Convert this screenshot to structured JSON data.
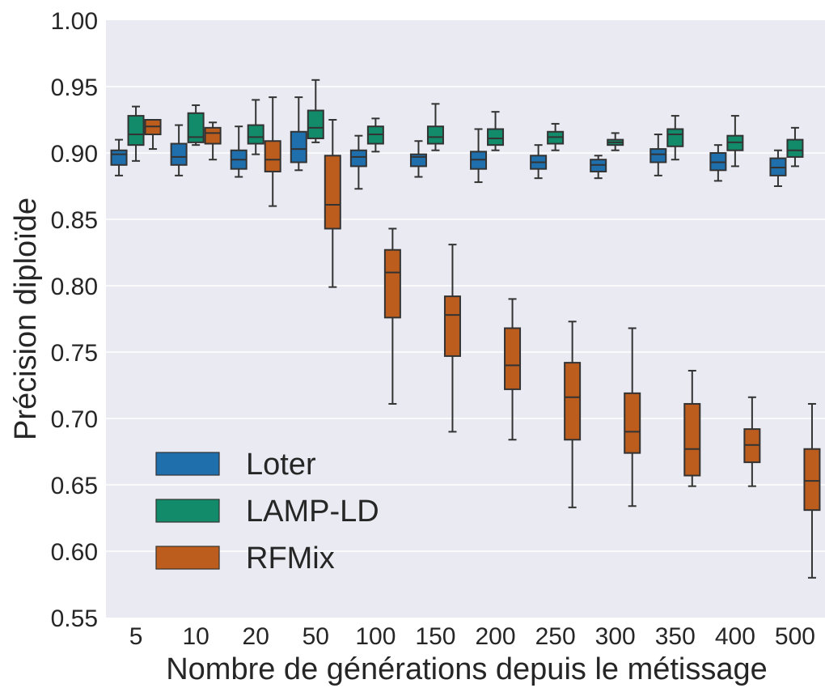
{
  "chart_data": {
    "type": "box",
    "xlabel": "Nombre de générations depuis le métissage",
    "ylabel": "Précision diploïde",
    "ylim": [
      0.55,
      1.0
    ],
    "yticks": [
      "1.00",
      "0.95",
      "0.90",
      "0.85",
      "0.80",
      "0.75",
      "0.70",
      "0.65",
      "0.60",
      "0.55"
    ],
    "categories": [
      "5",
      "10",
      "20",
      "50",
      "100",
      "150",
      "200",
      "250",
      "300",
      "350",
      "400",
      "500"
    ],
    "grid": true,
    "legend_position": "lower-left",
    "series": [
      {
        "name": "Loter",
        "color": "#1f6fad",
        "boxes": [
          {
            "whislo": 0.883,
            "q1": 0.891,
            "med": 0.899,
            "q3": 0.902,
            "whishi": 0.91
          },
          {
            "whislo": 0.883,
            "q1": 0.891,
            "med": 0.897,
            "q3": 0.907,
            "whishi": 0.921
          },
          {
            "whislo": 0.882,
            "q1": 0.888,
            "med": 0.895,
            "q3": 0.902,
            "whishi": 0.92
          },
          {
            "whislo": 0.887,
            "q1": 0.893,
            "med": 0.903,
            "q3": 0.916,
            "whishi": 0.942
          },
          {
            "whislo": 0.873,
            "q1": 0.89,
            "med": 0.897,
            "q3": 0.902,
            "whishi": 0.913
          },
          {
            "whislo": 0.882,
            "q1": 0.89,
            "med": 0.897,
            "q3": 0.899,
            "whishi": 0.909
          },
          {
            "whislo": 0.878,
            "q1": 0.888,
            "med": 0.895,
            "q3": 0.901,
            "whishi": 0.918
          },
          {
            "whislo": 0.881,
            "q1": 0.888,
            "med": 0.893,
            "q3": 0.898,
            "whishi": 0.906
          },
          {
            "whislo": 0.881,
            "q1": 0.886,
            "med": 0.891,
            "q3": 0.895,
            "whishi": 0.898
          },
          {
            "whislo": 0.883,
            "q1": 0.893,
            "med": 0.899,
            "q3": 0.903,
            "whishi": 0.914
          },
          {
            "whislo": 0.879,
            "q1": 0.887,
            "med": 0.893,
            "q3": 0.9,
            "whishi": 0.906
          },
          {
            "whislo": 0.875,
            "q1": 0.883,
            "med": 0.889,
            "q3": 0.896,
            "whishi": 0.902
          }
        ]
      },
      {
        "name": "LAMP-LD",
        "color": "#118b6a",
        "boxes": [
          {
            "whislo": 0.894,
            "q1": 0.906,
            "med": 0.914,
            "q3": 0.928,
            "whishi": 0.935
          },
          {
            "whislo": 0.906,
            "q1": 0.908,
            "med": 0.912,
            "q3": 0.93,
            "whishi": 0.936
          },
          {
            "whislo": 0.899,
            "q1": 0.907,
            "med": 0.912,
            "q3": 0.921,
            "whishi": 0.94
          },
          {
            "whislo": 0.908,
            "q1": 0.911,
            "med": 0.919,
            "q3": 0.932,
            "whishi": 0.955
          },
          {
            "whislo": 0.901,
            "q1": 0.907,
            "med": 0.914,
            "q3": 0.92,
            "whishi": 0.926
          },
          {
            "whislo": 0.902,
            "q1": 0.907,
            "med": 0.912,
            "q3": 0.92,
            "whishi": 0.937
          },
          {
            "whislo": 0.902,
            "q1": 0.906,
            "med": 0.911,
            "q3": 0.918,
            "whishi": 0.931
          },
          {
            "whislo": 0.902,
            "q1": 0.907,
            "med": 0.912,
            "q3": 0.916,
            "whishi": 0.922
          },
          {
            "whislo": 0.902,
            "q1": 0.906,
            "med": 0.908,
            "q3": 0.91,
            "whishi": 0.915
          },
          {
            "whislo": 0.895,
            "q1": 0.905,
            "med": 0.914,
            "q3": 0.918,
            "whishi": 0.928
          },
          {
            "whislo": 0.89,
            "q1": 0.902,
            "med": 0.908,
            "q3": 0.913,
            "whishi": 0.928
          },
          {
            "whislo": 0.89,
            "q1": 0.897,
            "med": 0.902,
            "q3": 0.91,
            "whishi": 0.919
          }
        ]
      },
      {
        "name": "RFMix",
        "color": "#bc5d1e",
        "boxes": [
          {
            "whislo": 0.903,
            "q1": 0.914,
            "med": 0.92,
            "q3": 0.925,
            "whishi": 0.925
          },
          {
            "whislo": 0.895,
            "q1": 0.907,
            "med": 0.915,
            "q3": 0.919,
            "whishi": 0.923
          },
          {
            "whislo": 0.86,
            "q1": 0.886,
            "med": 0.895,
            "q3": 0.909,
            "whishi": 0.942
          },
          {
            "whislo": 0.799,
            "q1": 0.843,
            "med": 0.861,
            "q3": 0.898,
            "whishi": 0.925
          },
          {
            "whislo": 0.711,
            "q1": 0.776,
            "med": 0.81,
            "q3": 0.827,
            "whishi": 0.843
          },
          {
            "whislo": 0.69,
            "q1": 0.747,
            "med": 0.778,
            "q3": 0.792,
            "whishi": 0.831
          },
          {
            "whislo": 0.684,
            "q1": 0.722,
            "med": 0.74,
            "q3": 0.768,
            "whishi": 0.79
          },
          {
            "whislo": 0.633,
            "q1": 0.684,
            "med": 0.716,
            "q3": 0.742,
            "whishi": 0.773
          },
          {
            "whislo": 0.634,
            "q1": 0.674,
            "med": 0.69,
            "q3": 0.719,
            "whishi": 0.768
          },
          {
            "whislo": 0.649,
            "q1": 0.657,
            "med": 0.677,
            "q3": 0.711,
            "whishi": 0.736
          },
          {
            "whislo": 0.649,
            "q1": 0.667,
            "med": 0.68,
            "q3": 0.692,
            "whishi": 0.716
          },
          {
            "whislo": 0.58,
            "q1": 0.631,
            "med": 0.653,
            "q3": 0.677,
            "whishi": 0.711
          }
        ]
      }
    ]
  }
}
